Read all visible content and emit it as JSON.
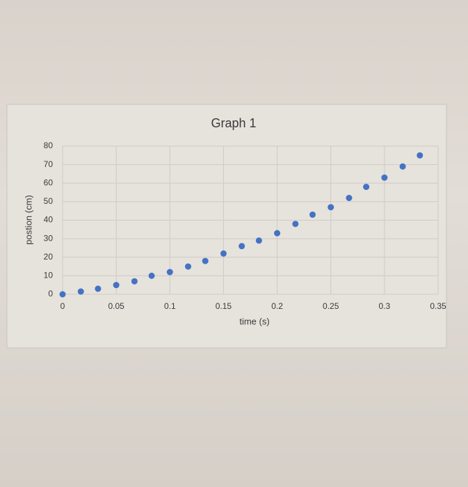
{
  "chart_data": {
    "type": "scatter",
    "title": "Graph 1",
    "x_label": "time (s)",
    "y_label": "postion (cm)",
    "x": [
      0,
      0.017,
      0.033,
      0.05,
      0.067,
      0.083,
      0.1,
      0.117,
      0.133,
      0.15,
      0.167,
      0.183,
      0.2,
      0.217,
      0.233,
      0.25,
      0.267,
      0.283,
      0.3,
      0.317,
      0.333
    ],
    "values": [
      0,
      1.5,
      3,
      5,
      7,
      10,
      12,
      15,
      18,
      22,
      26,
      29,
      33,
      38,
      43,
      47,
      52,
      58,
      63,
      69,
      75
    ],
    "color": "#4472c4",
    "xlim": [
      0,
      0.35
    ],
    "xticks": [
      0,
      0.05,
      0.1,
      0.15,
      0.2,
      0.25,
      0.3,
      0.35
    ],
    "ylim": [
      0,
      80
    ],
    "yticks": [
      0,
      10,
      20,
      30,
      40,
      50,
      60,
      70,
      80
    ],
    "grid": true
  }
}
